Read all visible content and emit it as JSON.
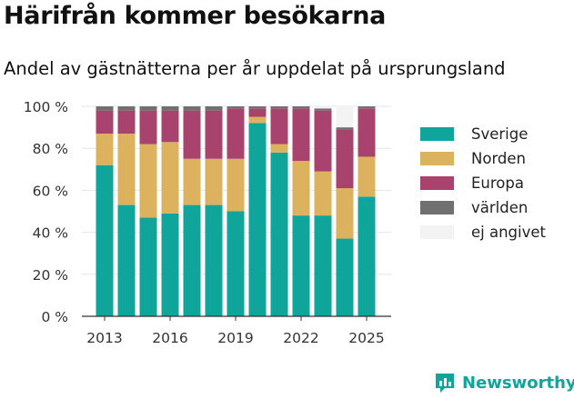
{
  "header": {
    "title": "Härifrån kommer besökarna",
    "subtitle": "Andel av gästnätterna per år uppdelat på ursprungsland"
  },
  "brand": {
    "name": "Newsworthy",
    "color": "#0fa59a",
    "icon": "newsworthy-bar-chart-logo-icon"
  },
  "colors": {
    "grid": "#e6e6e6",
    "axis": "#333333",
    "tick_text": "#333333"
  },
  "chart_data": {
    "type": "bar",
    "stacked": true,
    "title": "",
    "xlabel": "",
    "ylabel": "",
    "ylim": [
      0,
      100
    ],
    "y_ticks": [
      "0 %",
      "20 %",
      "40 %",
      "60 %",
      "80 %",
      "100 %"
    ],
    "y_tick_values": [
      0,
      20,
      40,
      60,
      80,
      100
    ],
    "categories": [
      "2013",
      "2014",
      "2015",
      "2016",
      "2017",
      "2018",
      "2019",
      "2020",
      "2021",
      "2022",
      "2023",
      "2024",
      "2025"
    ],
    "x_tick_labels": [
      "2013",
      "2016",
      "2019",
      "2022",
      "2025"
    ],
    "grid": true,
    "legend_position": "right",
    "series": [
      {
        "name": "Sverige",
        "color": "#0fa59a",
        "values": [
          72,
          53,
          47,
          49,
          53,
          53,
          50,
          92,
          78,
          48,
          48,
          37,
          57
        ]
      },
      {
        "name": "Norden",
        "color": "#dcb25f",
        "values": [
          15,
          34,
          35,
          34,
          22,
          22,
          25,
          3,
          4,
          26,
          21,
          24,
          19
        ]
      },
      {
        "name": "Europa",
        "color": "#a8436d",
        "values": [
          11,
          11,
          16,
          15,
          23,
          23,
          24,
          4,
          17,
          25,
          29,
          28,
          23
        ]
      },
      {
        "name": "världen",
        "color": "#707070",
        "values": [
          2,
          2,
          2,
          2,
          2,
          2,
          1,
          1,
          1,
          1,
          1,
          1,
          1
        ]
      },
      {
        "name": "ej angivet",
        "color": "#f3f3f3",
        "values": [
          0,
          0,
          0,
          0,
          0,
          0,
          0,
          0,
          0,
          0,
          1,
          10,
          0
        ]
      }
    ]
  }
}
